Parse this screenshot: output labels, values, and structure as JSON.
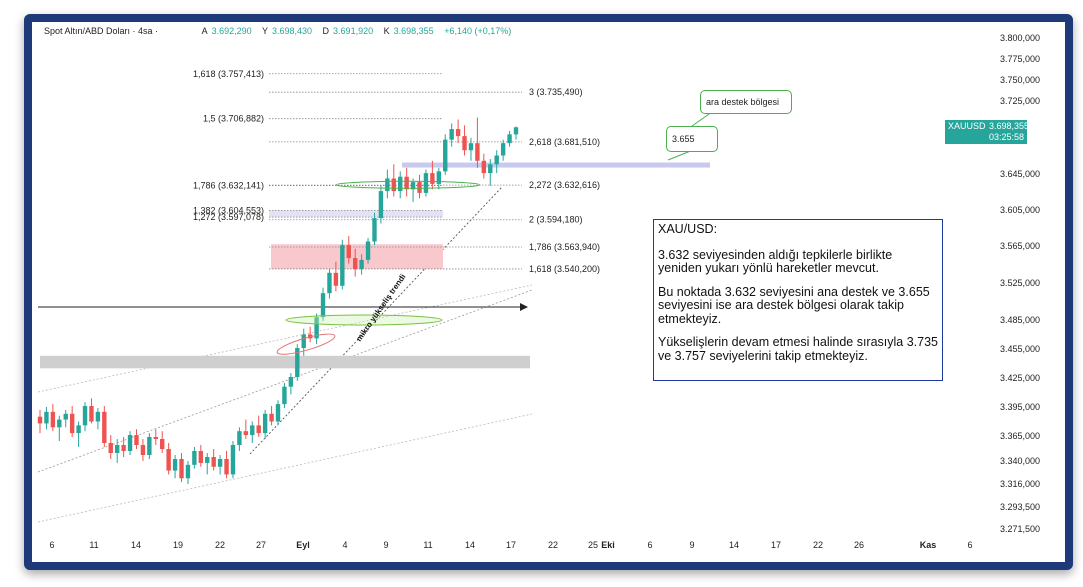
{
  "header": {
    "symbol": "Spot Altın/ABD Doları · 4sa ·",
    "open_label": "A",
    "open": "3.692,290",
    "high_label": "Y",
    "high": "3.698,430",
    "low_label": "D",
    "low": "3.691,920",
    "close_label": "K",
    "close": "3.698,355",
    "change": "+6,140 (+0,17%)"
  },
  "price_tag": {
    "symbol": "XAUUSD",
    "price": "3.698,355",
    "countdown": "03:25:58"
  },
  "callouts": {
    "mid_support": "ara destek bölgesi",
    "level": "3.655"
  },
  "trend_label": "mikro yükseliş trendi",
  "textbox": {
    "title": "XAU/USD:",
    "p1": "3.632 seviyesinden aldığı tepkilerle birlikte yeniden yukarı yönlü hareketler mevcut.",
    "p2": "Bu noktada 3.632 seviyesini ana destek ve 3.655 seviyesini ise ara destek bölgesi olarak takip etmekteyiz.",
    "p3": "Yükselişlerin devam etmesi halinde sırasıyla 3.735 ve 3.757 seviyelerini takip etmekteyiz."
  },
  "colors": {
    "up": "#26a69a",
    "down": "#ef5350",
    "frame": "#1f3a78",
    "tag": "#26a69a",
    "box_border": "#1f3a9a"
  },
  "chart_data": {
    "type": "candlestick",
    "y_ticks": [
      3800.0,
      3775.0,
      3750.0,
      3725.0,
      3698.355,
      3645.0,
      3605.0,
      3565.0,
      3525.0,
      3485.0,
      3455.0,
      3425.0,
      3395.0,
      3365.0,
      3340.0,
      3316.0,
      3293.5,
      3271.5
    ],
    "y_tick_labels": [
      "3.800,000",
      "3.775,000",
      "3.750,000",
      "3.725,000",
      "",
      "3.645,000",
      "3.605,000",
      "3.565,000",
      "3.525,000",
      "3.485,000",
      "3.455,000",
      "3.425,000",
      "3.395,000",
      "3.365,000",
      "3.340,000",
      "3.316,000",
      "3.293,500",
      "3.271,500"
    ],
    "x_ticks": [
      "6",
      "11",
      "14",
      "19",
      "22",
      "27",
      "Eyl",
      "4",
      "9",
      "11",
      "14",
      "17",
      "22",
      "25",
      "Eki",
      "6",
      "9",
      "14",
      "17",
      "22",
      "26",
      "Kas",
      "6"
    ],
    "fib_left": [
      {
        "label": "1,618 (3.757,413)",
        "value": 3757.413
      },
      {
        "label": "1,5 (3.706,882)",
        "value": 3706.882
      },
      {
        "label": "1,786 (3.632,141)",
        "value": 3632.141
      },
      {
        "label": "1,382 (3.604,553)",
        "value": 3604.553
      },
      {
        "label": "1,272 (3.597,078)",
        "value": 3597.078
      }
    ],
    "fib_right": [
      {
        "label": "3 (3.735,490)",
        "value": 3735.49
      },
      {
        "label": "2,618 (3.681,510)",
        "value": 3681.51
      },
      {
        "label": "2,272 (3.632,616)",
        "value": 3632.616
      },
      {
        "label": "2 (3.594,180)",
        "value": 3594.18
      },
      {
        "label": "1,786 (3.563,940)",
        "value": 3563.94
      },
      {
        "label": "1,618 (3.540,200)",
        "value": 3540.2
      }
    ],
    "zones": [
      {
        "name": "resistance-zone-red",
        "from": 3540.2,
        "to": 3567
      },
      {
        "name": "support-zone-gray",
        "from": 3435,
        "to": 3448
      },
      {
        "name": "mid-support-line",
        "from": 3654,
        "to": 3658
      }
    ],
    "ohlc": [
      [
        3385,
        3392,
        3368,
        3378
      ],
      [
        3378,
        3395,
        3372,
        3390
      ],
      [
        3390,
        3398,
        3370,
        3374
      ],
      [
        3374,
        3386,
        3360,
        3382
      ],
      [
        3382,
        3392,
        3374,
        3388
      ],
      [
        3388,
        3396,
        3364,
        3368
      ],
      [
        3368,
        3380,
        3354,
        3376
      ],
      [
        3376,
        3400,
        3370,
        3396
      ],
      [
        3396,
        3404,
        3378,
        3380
      ],
      [
        3380,
        3394,
        3372,
        3390
      ],
      [
        3390,
        3396,
        3354,
        3358
      ],
      [
        3358,
        3366,
        3342,
        3348
      ],
      [
        3348,
        3362,
        3338,
        3356
      ],
      [
        3356,
        3364,
        3344,
        3350
      ],
      [
        3350,
        3370,
        3346,
        3366
      ],
      [
        3366,
        3372,
        3352,
        3356
      ],
      [
        3356,
        3362,
        3340,
        3346
      ],
      [
        3346,
        3368,
        3342,
        3364
      ],
      [
        3364,
        3372,
        3356,
        3362
      ],
      [
        3362,
        3370,
        3348,
        3352
      ],
      [
        3352,
        3358,
        3326,
        3330
      ],
      [
        3330,
        3346,
        3322,
        3342
      ],
      [
        3342,
        3348,
        3318,
        3322
      ],
      [
        3322,
        3340,
        3316,
        3336
      ],
      [
        3336,
        3354,
        3332,
        3350
      ],
      [
        3350,
        3356,
        3334,
        3338
      ],
      [
        3338,
        3348,
        3326,
        3344
      ],
      [
        3344,
        3352,
        3330,
        3334
      ],
      [
        3334,
        3346,
        3326,
        3342
      ],
      [
        3342,
        3350,
        3322,
        3326
      ],
      [
        3326,
        3360,
        3322,
        3356
      ],
      [
        3356,
        3374,
        3350,
        3370
      ],
      [
        3370,
        3382,
        3362,
        3366
      ],
      [
        3366,
        3380,
        3358,
        3376
      ],
      [
        3376,
        3386,
        3364,
        3368
      ],
      [
        3368,
        3392,
        3362,
        3388
      ],
      [
        3388,
        3396,
        3376,
        3380
      ],
      [
        3380,
        3402,
        3376,
        3398
      ],
      [
        3398,
        3420,
        3394,
        3416
      ],
      [
        3416,
        3430,
        3408,
        3426
      ],
      [
        3426,
        3460,
        3422,
        3456
      ],
      [
        3456,
        3476,
        3448,
        3470
      ],
      [
        3470,
        3478,
        3462,
        3466
      ],
      [
        3466,
        3492,
        3460,
        3488
      ],
      [
        3488,
        3520,
        3484,
        3514
      ],
      [
        3514,
        3540,
        3508,
        3536
      ],
      [
        3536,
        3548,
        3516,
        3522
      ],
      [
        3522,
        3572,
        3518,
        3566
      ],
      [
        3566,
        3576,
        3546,
        3552
      ],
      [
        3552,
        3562,
        3532,
        3540
      ],
      [
        3540,
        3556,
        3534,
        3550
      ],
      [
        3550,
        3574,
        3546,
        3570
      ],
      [
        3570,
        3602,
        3566,
        3596
      ],
      [
        3596,
        3632,
        3590,
        3626
      ],
      [
        3626,
        3650,
        3618,
        3640
      ],
      [
        3640,
        3656,
        3620,
        3626
      ],
      [
        3626,
        3648,
        3618,
        3642
      ],
      [
        3642,
        3652,
        3620,
        3628
      ],
      [
        3628,
        3640,
        3614,
        3636
      ],
      [
        3636,
        3644,
        3618,
        3624
      ],
      [
        3624,
        3650,
        3620,
        3646
      ],
      [
        3646,
        3660,
        3628,
        3634
      ],
      [
        3634,
        3652,
        3628,
        3648
      ],
      [
        3648,
        3690,
        3644,
        3684
      ],
      [
        3684,
        3702,
        3676,
        3696
      ],
      [
        3696,
        3706,
        3680,
        3688
      ],
      [
        3688,
        3700,
        3666,
        3672
      ],
      [
        3672,
        3686,
        3660,
        3680
      ],
      [
        3680,
        3708,
        3652,
        3660
      ],
      [
        3660,
        3668,
        3640,
        3646
      ],
      [
        3646,
        3662,
        3632,
        3656
      ],
      [
        3656,
        3672,
        3646,
        3666
      ],
      [
        3666,
        3684,
        3660,
        3680
      ],
      [
        3680,
        3694,
        3676,
        3690
      ],
      [
        3690,
        3699,
        3684,
        3698
      ]
    ]
  }
}
